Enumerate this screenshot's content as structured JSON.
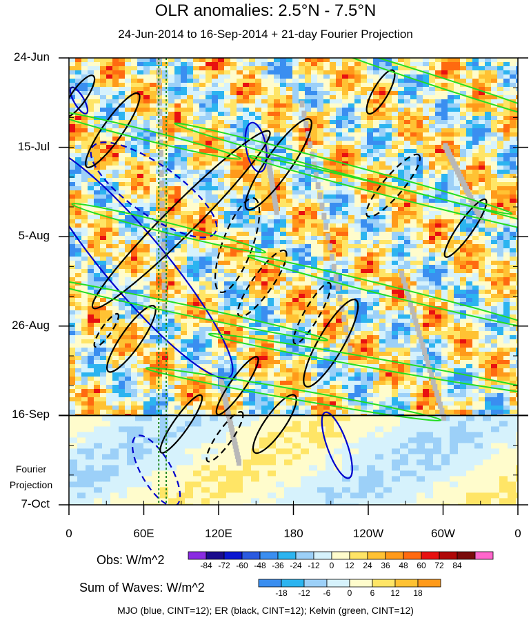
{
  "title": "OLR anomalies: 2.5°N - 7.5°N",
  "subtitle": "24-Jun-2014 to 16-Sep-2014 + 21-day Fourier Projection",
  "projection_label_line1": "Fourier",
  "projection_label_line2": "Projection",
  "footer": "MJO (blue, CINT=12); ER (black, CINT=12); Kelvin (green, CINT=12)",
  "colors": {
    "mjo_contour": "#0000cc",
    "er_contour": "#000000",
    "kelvin_contour": "#22dd22",
    "reference_lines": "#228822",
    "missing_data": "#b8b8b8"
  },
  "obs_colorbar": {
    "title": "Obs: W/m^2",
    "ticks": [
      "-84",
      "-72",
      "-60",
      "-48",
      "-36",
      "-24",
      "-12",
      "0",
      "12",
      "24",
      "36",
      "48",
      "60",
      "72",
      "84"
    ],
    "colors": [
      "#8a2be2",
      "#1a0b8c",
      "#0b16d0",
      "#2a5ae0",
      "#3a8ef0",
      "#2cb4f0",
      "#9cd0f8",
      "#d6f2fc",
      "#fffccc",
      "#ffe566",
      "#ffc233",
      "#ff9a1a",
      "#ff6a10",
      "#e81010",
      "#b00808",
      "#7a0a0a",
      "#ff66cc"
    ]
  },
  "waves_colorbar": {
    "title": "Sum of Waves: W/m^2",
    "ticks": [
      "-18",
      "-12",
      "-6",
      "0",
      "6",
      "12",
      "18"
    ],
    "colors": [
      "#3a8ef0",
      "#2cb4f0",
      "#9cd0f8",
      "#d6f2fc",
      "#fffccc",
      "#ffe566",
      "#ffc233",
      "#ff9a1a"
    ]
  },
  "chart_data": {
    "type": "heatmap",
    "title": "OLR anomalies: 2.5°N - 7.5°N",
    "subtitle": "24-Jun-2014 to 16-Sep-2014 + 21-day Fourier Projection",
    "x_axis": {
      "ticks": [
        "0",
        "60E",
        "120E",
        "180",
        "120W",
        "60W",
        "0"
      ],
      "tick_lon": [
        0,
        60,
        120,
        180,
        240,
        300,
        360
      ],
      "range": [
        0,
        360
      ]
    },
    "y_axis": {
      "ticks": [
        "24-Jun",
        "15-Jul",
        "5-Aug",
        "26-Aug",
        "16-Sep",
        "7-Oct"
      ],
      "tick_day": [
        0,
        21,
        42,
        63,
        84,
        105
      ],
      "range": [
        0,
        105
      ],
      "observed_end_day": 84
    },
    "reference_lines_lon": [
      72,
      78
    ],
    "contours": [
      {
        "wave": "MJO",
        "color": "blue",
        "style": "solid",
        "lon": 52,
        "day": 48,
        "rx": 60,
        "ry": 12,
        "angle": 50
      },
      {
        "wave": "MJO",
        "color": "blue",
        "style": "dashed",
        "lon": 68,
        "day": 31,
        "rx": 30,
        "ry": 10,
        "angle": 35
      },
      {
        "wave": "MJO",
        "color": "blue",
        "style": "solid",
        "lon": 150,
        "day": 21,
        "rx": 10,
        "ry": 4,
        "angle": 80
      },
      {
        "wave": "MJO",
        "color": "blue",
        "style": "solid",
        "lon": 215,
        "day": 91,
        "rx": 14,
        "ry": 4,
        "angle": 70
      },
      {
        "wave": "MJO",
        "color": "blue",
        "style": "dashed",
        "lon": 70,
        "day": 97,
        "rx": 16,
        "ry": 6,
        "angle": 60
      },
      {
        "wave": "MJO",
        "color": "blue",
        "style": "solid",
        "lon": 8,
        "day": 10,
        "rx": 6,
        "ry": 2,
        "angle": 60
      },
      {
        "wave": "ER",
        "color": "black",
        "style": "solid",
        "lon": 90,
        "day": 38,
        "rx": 50,
        "ry": 6,
        "angle": -45
      },
      {
        "wave": "ER",
        "color": "black",
        "style": "solid",
        "lon": 35,
        "day": 17,
        "rx": 18,
        "ry": 4,
        "angle": -55
      },
      {
        "wave": "ER",
        "color": "black",
        "style": "dashed",
        "lon": 135,
        "day": 44,
        "rx": 20,
        "ry": 6,
        "angle": -70
      },
      {
        "wave": "ER",
        "color": "black",
        "style": "solid",
        "lon": 168,
        "day": 25,
        "rx": 22,
        "ry": 5,
        "angle": -55
      },
      {
        "wave": "ER",
        "color": "black",
        "style": "dashed",
        "lon": 155,
        "day": 53,
        "rx": 16,
        "ry": 4,
        "angle": -55
      },
      {
        "wave": "ER",
        "color": "black",
        "style": "dashed",
        "lon": 260,
        "day": 30,
        "rx": 16,
        "ry": 4,
        "angle": -50
      },
      {
        "wave": "ER",
        "color": "black",
        "style": "solid",
        "lon": 318,
        "day": 40,
        "rx": 14,
        "ry": 3,
        "angle": -55
      },
      {
        "wave": "ER",
        "color": "black",
        "style": "solid",
        "lon": 250,
        "day": 8,
        "rx": 10,
        "ry": 3,
        "angle": -60
      },
      {
        "wave": "ER",
        "color": "black",
        "style": "solid",
        "lon": 210,
        "day": 67,
        "rx": 20,
        "ry": 5,
        "angle": -60
      },
      {
        "wave": "ER",
        "color": "black",
        "style": "dashed",
        "lon": 195,
        "day": 60,
        "rx": 14,
        "ry": 3,
        "angle": -60
      },
      {
        "wave": "ER",
        "color": "black",
        "style": "solid",
        "lon": 50,
        "day": 66,
        "rx": 16,
        "ry": 4,
        "angle": -55
      },
      {
        "wave": "ER",
        "color": "black",
        "style": "solid",
        "lon": 90,
        "day": 86,
        "rx": 14,
        "ry": 3,
        "angle": -55
      },
      {
        "wave": "ER",
        "color": "black",
        "style": "solid",
        "lon": 165,
        "day": 86,
        "rx": 14,
        "ry": 4,
        "angle": -55
      },
      {
        "wave": "ER",
        "color": "black",
        "style": "solid",
        "lon": 135,
        "day": 77,
        "rx": 14,
        "ry": 3,
        "angle": -55
      },
      {
        "wave": "ER",
        "color": "black",
        "style": "dashed",
        "lon": 125,
        "day": 89,
        "rx": 12,
        "ry": 3,
        "angle": -55
      },
      {
        "wave": "ER",
        "color": "black",
        "style": "solid",
        "lon": 8,
        "day": 9,
        "rx": 10,
        "ry": 3,
        "angle": -55
      },
      {
        "wave": "ER",
        "color": "black",
        "style": "dashed",
        "lon": 30,
        "day": 64,
        "rx": 8,
        "ry": 2,
        "angle": -55
      },
      {
        "wave": "Kelvin",
        "color": "green",
        "style": "solid",
        "lon": 300,
        "day": 6,
        "rx": 55,
        "ry": 2,
        "angle": 18
      },
      {
        "wave": "Kelvin",
        "color": "green",
        "style": "solid",
        "lon": 220,
        "day": 26,
        "rx": 70,
        "ry": 2,
        "angle": 15
      },
      {
        "wave": "Kelvin",
        "color": "green",
        "style": "solid",
        "lon": 280,
        "day": 33,
        "rx": 70,
        "ry": 2,
        "angle": 14
      },
      {
        "wave": "Kelvin",
        "color": "green",
        "style": "solid",
        "lon": 80,
        "day": 40,
        "rx": 40,
        "ry": 2,
        "angle": 14
      },
      {
        "wave": "Kelvin",
        "color": "green",
        "style": "solid",
        "lon": 260,
        "day": 55,
        "rx": 60,
        "ry": 2,
        "angle": 14
      },
      {
        "wave": "Kelvin",
        "color": "green",
        "style": "solid",
        "lon": 90,
        "day": 59,
        "rx": 60,
        "ry": 2,
        "angle": 12
      },
      {
        "wave": "Kelvin",
        "color": "green",
        "style": "solid",
        "lon": 250,
        "day": 72,
        "rx": 70,
        "ry": 2,
        "angle": 10
      },
      {
        "wave": "Kelvin",
        "color": "green",
        "style": "solid",
        "lon": 180,
        "day": 79,
        "rx": 60,
        "ry": 2,
        "angle": 10
      },
      {
        "wave": "Kelvin",
        "color": "green",
        "style": "solid",
        "lon": 60,
        "day": 18,
        "rx": 40,
        "ry": 2,
        "angle": 14
      }
    ]
  }
}
